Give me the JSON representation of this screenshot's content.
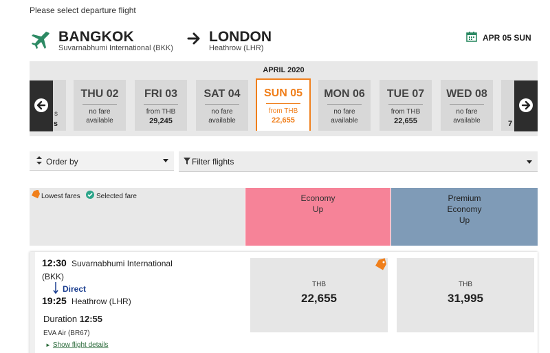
{
  "instruction": "Please select departure flight",
  "route": {
    "origin_city": "BANGKOK",
    "origin_airport": "Suvarnabhumi International (BKK)",
    "dest_city": "LONDON",
    "dest_airport": "Heathrow (LHR)",
    "selected_date": "APR 05 SUN"
  },
  "date_strip": {
    "month": "APRIL 2020",
    "partial_left": [
      "s",
      "s"
    ],
    "days": [
      {
        "label": "THU 02",
        "line1": "no fare",
        "line2": "available",
        "has_fare": false,
        "selected": false
      },
      {
        "label": "FRI 03",
        "line1": "from THB",
        "line2": "29,245",
        "has_fare": true,
        "selected": false
      },
      {
        "label": "SAT 04",
        "line1": "no fare",
        "line2": "available",
        "has_fare": false,
        "selected": false
      },
      {
        "label": "SUN 05",
        "line1": "from THB",
        "line2": "22,655",
        "has_fare": true,
        "selected": true
      },
      {
        "label": "MON 06",
        "line1": "no fare",
        "line2": "available",
        "has_fare": false,
        "selected": false
      },
      {
        "label": "TUE 07",
        "line1": "from THB",
        "line2": "22,655",
        "has_fare": true,
        "selected": false
      },
      {
        "label": "WED 08",
        "line1": "no fare",
        "line2": "available",
        "has_fare": false,
        "selected": false
      }
    ],
    "partial_right": "7"
  },
  "controls": {
    "order_by": "Order by",
    "filter": "Filter flights"
  },
  "legend": {
    "lowest": "Lowest fares",
    "selected": "Selected fare"
  },
  "cabins": {
    "economy": [
      "Economy",
      "Up"
    ],
    "premium": [
      "Premium",
      "Economy",
      "Up"
    ]
  },
  "flight": {
    "dep_time": "12:30",
    "dep_airport": "Suvarnabhumi International",
    "dep_code": "(BKK)",
    "direct": "Direct",
    "arr_time": "19:25",
    "arr_airport": "Heathrow (LHR)",
    "duration_label": "Duration",
    "duration": "12:55",
    "airline": "EVA Air (BR67)",
    "details_link": "Show flight details",
    "economy_currency": "THB",
    "economy_price": "22,655",
    "premium_currency": "THB",
    "premium_price": "31,995"
  },
  "colors": {
    "accent": "#f07f1b",
    "economy_bg": "#f68398",
    "premium_bg": "#7f9bb7",
    "brand_green": "#2d8a64"
  }
}
